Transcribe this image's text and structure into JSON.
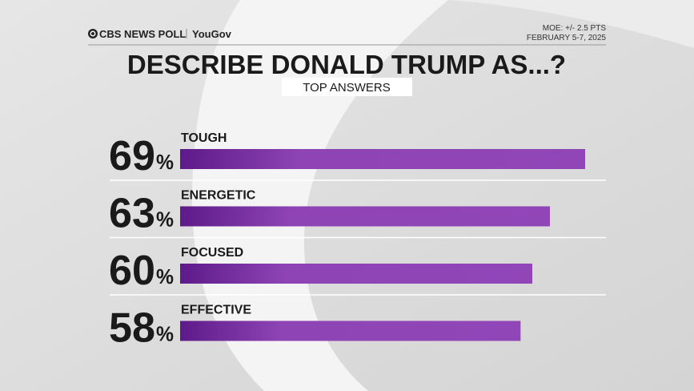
{
  "chart_data": {
    "type": "bar",
    "orientation": "horizontal",
    "source": "CBS NEWS POLL",
    "partner": "YouGov",
    "moe": "MOE: +/- 2.5 PTS",
    "date": "FEBRUARY 5-7, 2025",
    "title": "DESCRIBE DONALD TRUMP AS...?",
    "subtitle": "TOP ANSWERS",
    "categories": [
      "TOUGH",
      "ENERGETIC",
      "FOCUSED",
      "EFFECTIVE"
    ],
    "values": [
      69,
      63,
      60,
      58
    ],
    "value_suffix": "%",
    "color": "#8e44b4"
  }
}
